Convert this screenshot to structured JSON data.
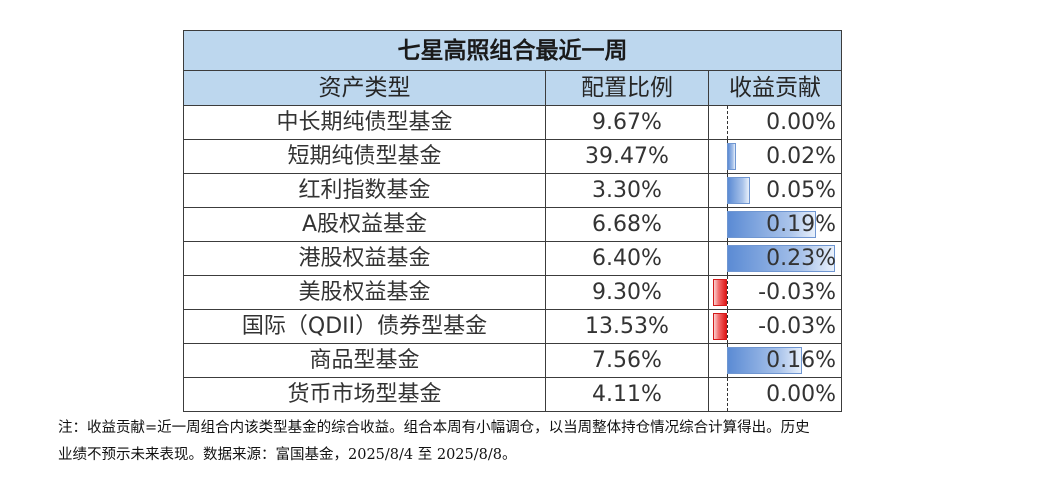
{
  "table": {
    "title": "七星高照组合最近一周",
    "headers": [
      "资产类型",
      "配置比例",
      "收益贡献"
    ],
    "rows": [
      {
        "name": "中长期纯债型基金",
        "ratio": "9.67%",
        "contribution": "0.00%",
        "contribution_value": 0.0
      },
      {
        "name": "短期纯债型基金",
        "ratio": "39.47%",
        "contribution": "0.02%",
        "contribution_value": 0.02
      },
      {
        "name": "红利指数基金",
        "ratio": "3.30%",
        "contribution": "0.05%",
        "contribution_value": 0.05
      },
      {
        "name": "A股权益基金",
        "ratio": "6.68%",
        "contribution": "0.19%",
        "contribution_value": 0.19
      },
      {
        "name": "港股权益基金",
        "ratio": "6.40%",
        "contribution": "0.23%",
        "contribution_value": 0.23
      },
      {
        "name": "美股权益基金",
        "ratio": "9.30%",
        "contribution": "-0.03%",
        "contribution_value": -0.03
      },
      {
        "name": "国际（QDII）债券型基金",
        "ratio": "13.53%",
        "contribution": "-0.03%",
        "contribution_value": -0.03
      },
      {
        "name": "商品型基金",
        "ratio": "7.56%",
        "contribution": "0.16%",
        "contribution_value": 0.16
      },
      {
        "name": "货币市场型基金",
        "ratio": "4.11%",
        "contribution": "0.00%",
        "contribution_value": 0.0
      }
    ],
    "colors": {
      "header_bg": "#bdd7ee",
      "positive_bar": "#5b8bd4",
      "negative_bar": "#e01818"
    }
  },
  "note": {
    "line1": "注：收益贡献=近一周组合内该类型基金的综合收益。组合本周有小幅调仓，以当周整体持仓情况综合计算得出。历史",
    "line2": "业绩不预示未来表现。数据来源：富国基金，2025/8/4 至 2025/8/8。"
  }
}
